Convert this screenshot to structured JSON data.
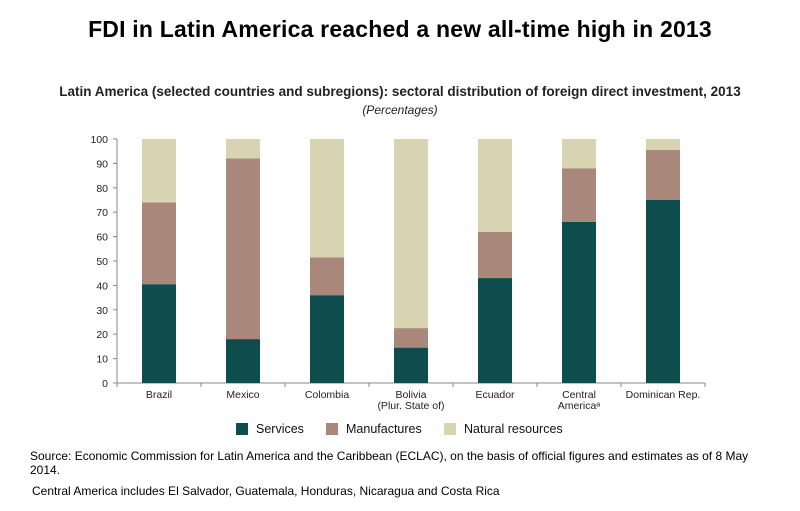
{
  "headline": "FDI in Latin America reached a new all-time high in 2013",
  "colors": {
    "services": "#0d4d4d",
    "manufactures": "#a9877b",
    "natural_resources": "#d8d3b0",
    "axis": "#888888"
  },
  "chart_data": {
    "type": "bar",
    "stacked": true,
    "title": "Latin America (selected countries and subregions): sectoral distribution of foreign direct investment, 2013",
    "subtitle": "(Percentages)",
    "xlabel": "",
    "ylabel": "",
    "ylim": [
      0,
      100
    ],
    "yticks": [
      0,
      10,
      20,
      30,
      40,
      50,
      60,
      70,
      80,
      90,
      100
    ],
    "categories": [
      [
        "Brazil"
      ],
      [
        "Mexico"
      ],
      [
        "Colombia"
      ],
      [
        "Bolivia",
        "(Plur. State of)"
      ],
      [
        "Ecuador"
      ],
      [
        "Central",
        "Americaᵃ"
      ],
      [
        "Dominican Rep."
      ]
    ],
    "series": [
      {
        "name": "Services",
        "color_key": "services",
        "values": [
          40.5,
          18,
          36,
          14.5,
          43,
          66,
          75
        ]
      },
      {
        "name": "Manufactures",
        "color_key": "manufactures",
        "values": [
          33.5,
          74,
          15.5,
          8,
          19,
          22,
          20.5
        ]
      },
      {
        "name": "Natural resources",
        "color_key": "natural_resources",
        "values": [
          26,
          8,
          48.5,
          77.5,
          38,
          12,
          4.5
        ]
      }
    ],
    "legend": [
      "Services",
      "Manufactures",
      "Natural resources"
    ],
    "legend_position": "bottom",
    "grid": false
  },
  "source": "Source: Economic Commission for Latin America and the Caribbean (ECLAC), on the basis of official figures and estimates as of 8 May 2014.",
  "note": "Central America includes El Salvador, Guatemala, Honduras, Nicaragua and Costa Rica"
}
